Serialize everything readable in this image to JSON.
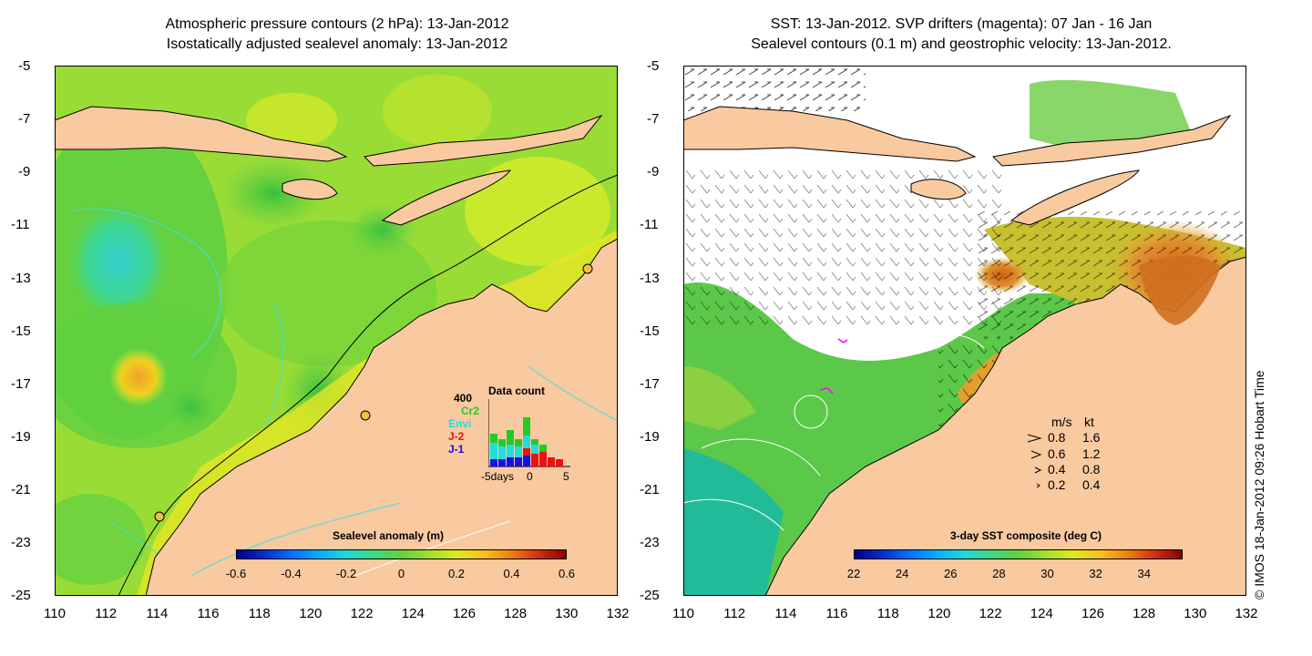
{
  "left_panel": {
    "title_line1": "Atmospheric pressure contours (2 hPa): 13-Jan-2012",
    "title_line2": "Isostatically adjusted sealevel anomaly: 13-Jan-2012",
    "y_ticks": [
      "-5",
      "-7",
      "-9",
      "-11",
      "-13",
      "-15",
      "-17",
      "-19",
      "-21",
      "-23",
      "-25"
    ],
    "x_ticks": [
      "110",
      "112",
      "114",
      "116",
      "118",
      "120",
      "122",
      "124",
      "126",
      "128",
      "130",
      "132"
    ],
    "colorbar_title": "Sealevel anomaly (m)",
    "colorbar_ticks": [
      "-0.6",
      "-0.4",
      "-0.2",
      "0",
      "0.2",
      "0.4",
      "0.6"
    ],
    "colorbar_range": [
      -0.6,
      0.6
    ],
    "inset": {
      "title": "Data count",
      "ymax_label": "400",
      "missions": [
        {
          "name": "Cr2",
          "color": "#22cc22"
        },
        {
          "name": "Envi",
          "color": "#22dddd"
        },
        {
          "name": "J-2",
          "color": "#ee1111"
        },
        {
          "name": "J-1",
          "color": "#1111ee"
        }
      ],
      "xlabel_left": "-5days",
      "xlabel_zero": "0",
      "xlabel_right": "5"
    }
  },
  "right_panel": {
    "title_line1": "SST: 13-Jan-2012. SVP drifters (magenta): 07 Jan - 16 Jan",
    "title_line2": "Sealevel contours (0.1 m) and geostrophic velocity: 13-Jan-2012.",
    "y_ticks": [
      "-5",
      "-7",
      "-9",
      "-11",
      "-13",
      "-15",
      "-17",
      "-19",
      "-21",
      "-23",
      "-25"
    ],
    "x_ticks": [
      "110",
      "112",
      "114",
      "116",
      "118",
      "120",
      "122",
      "124",
      "126",
      "128",
      "130",
      "132"
    ],
    "colorbar_title": "3-day SST composite (deg C)",
    "colorbar_ticks": [
      "22",
      "24",
      "26",
      "28",
      "30",
      "32",
      "34"
    ],
    "colorbar_range": [
      22,
      35.5
    ],
    "speed_legend": {
      "header_ms": "m/s",
      "header_kt": "kt",
      "rows": [
        {
          "ms": "0.8",
          "kt": "1.6"
        },
        {
          "ms": "0.6",
          "kt": "1.2"
        },
        {
          "ms": "0.4",
          "kt": "0.8"
        },
        {
          "ms": "0.2",
          "kt": "0.4"
        }
      ]
    },
    "stamp": "© IMOS 18-Jan-2012 09:26 Hobart Time"
  },
  "colors": {
    "land": "#f9c9a0",
    "ocean_green": "#7dd640",
    "ocean_yellow": "#d6ea2a",
    "ocean_cyan": "#3cd2c0",
    "ocean_orange": "#f0a020",
    "sst_orange": "#e08020",
    "sst_green": "#44bb44",
    "sst_teal": "#22bb99",
    "contour_cyan": "#40e0e0",
    "drifter_magenta": "#ff00ff"
  }
}
